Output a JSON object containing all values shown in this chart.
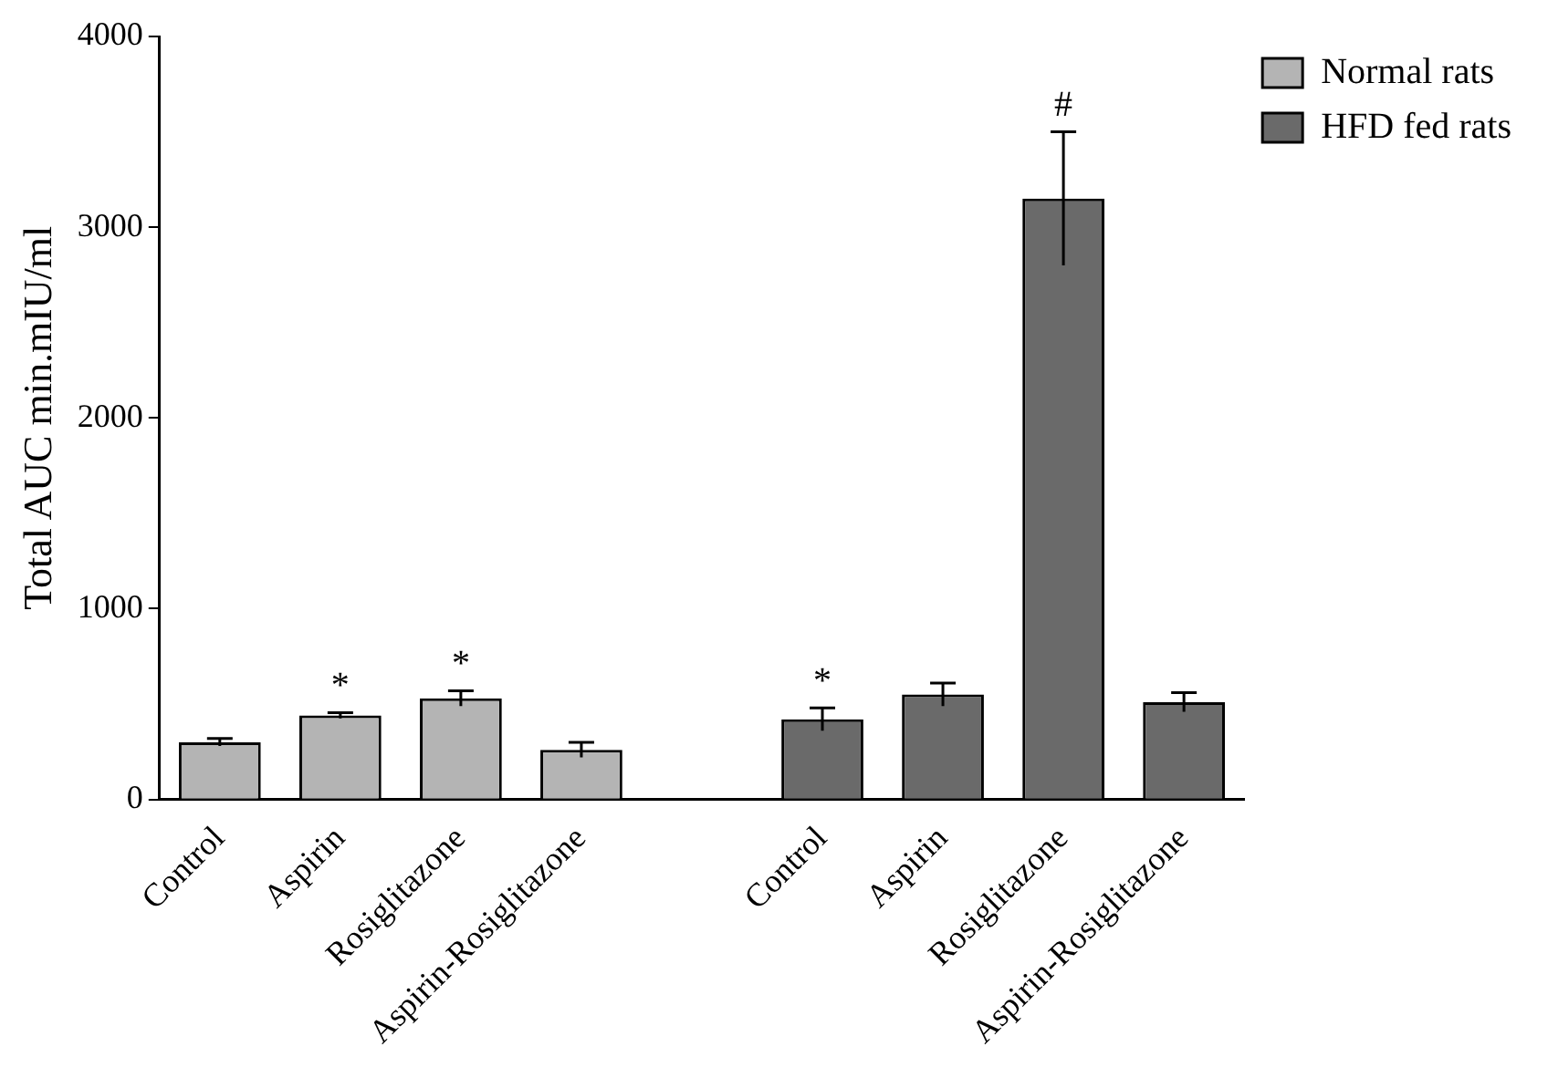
{
  "chart_data": {
    "type": "bar",
    "ylabel": "Total AUC min.mIU/ml",
    "categories": [
      "Control",
      "Aspirin",
      "Rosiglitazone",
      "Aspirin-Rosiglitazone",
      null,
      "Control",
      "Aspirin",
      "Rosiglitazone",
      "Aspirin-Rosiglitazone"
    ],
    "series": [
      {
        "name": "Normal rats",
        "color": "#b4b4b4",
        "values": [
          300,
          440,
          530,
          260,
          null,
          null,
          null,
          null,
          null
        ],
        "errors": [
          20,
          15,
          40,
          40,
          null,
          null,
          null,
          null,
          null
        ],
        "value_labels": [
          null,
          "*",
          "*",
          null,
          null,
          null,
          null,
          null,
          null
        ]
      },
      {
        "name": "HFD fed rats",
        "color": "#6a6a6a",
        "values": [
          null,
          null,
          null,
          null,
          null,
          420,
          550,
          3150,
          510
        ],
        "errors": [
          null,
          null,
          null,
          null,
          null,
          60,
          60,
          350,
          50
        ],
        "value_labels": [
          null,
          null,
          null,
          null,
          null,
          "*",
          null,
          "#",
          null
        ]
      }
    ],
    "ylim": [
      0,
      4000
    ],
    "yticks": [
      0,
      1000,
      2000,
      3000,
      4000
    ],
    "grid": false,
    "legend": "top right"
  }
}
